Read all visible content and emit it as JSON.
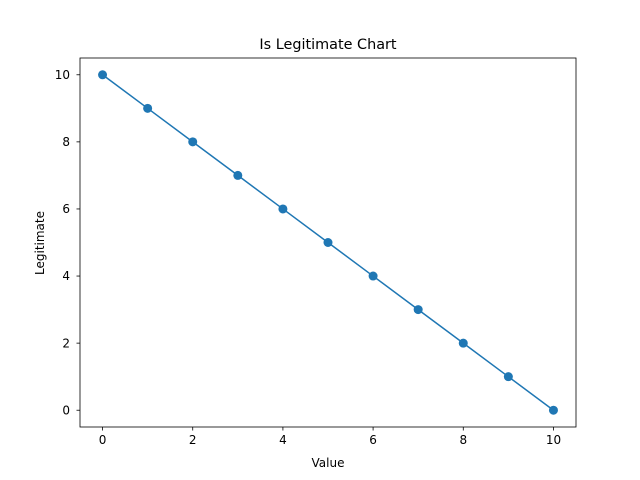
{
  "chart_data": {
    "type": "line",
    "title": "Is Legitimate Chart",
    "xlabel": "Value",
    "ylabel": "Legitimate",
    "x": [
      0,
      1,
      2,
      3,
      4,
      5,
      6,
      7,
      8,
      9,
      10
    ],
    "series": [
      {
        "values": [
          10,
          9,
          8,
          7,
          6,
          5,
          4,
          3,
          2,
          1,
          0
        ],
        "color": "#1f77b4",
        "marker": "circle"
      }
    ],
    "xlim": [
      -0.5,
      10.5
    ],
    "ylim": [
      -0.5,
      10.5
    ],
    "xticks": [
      0,
      2,
      4,
      6,
      8,
      10
    ],
    "yticks": [
      0,
      2,
      4,
      6,
      8,
      10
    ],
    "grid": false,
    "legend": false
  }
}
